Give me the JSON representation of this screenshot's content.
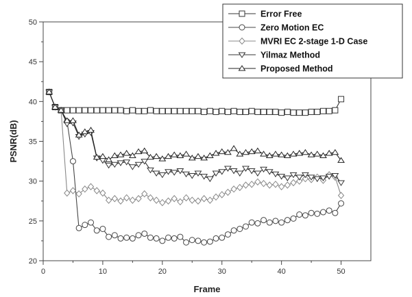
{
  "chart_data": {
    "type": "line",
    "xlabel": "Frame",
    "ylabel": "PSNR(dB)",
    "xlim": [
      0,
      55
    ],
    "ylim": [
      20,
      50
    ],
    "xticks": [
      0,
      10,
      20,
      30,
      40,
      50
    ],
    "yticks": [
      20,
      25,
      30,
      35,
      40,
      45,
      50
    ],
    "grid": false,
    "legend_position": "top-right",
    "series": [
      {
        "name": "Error Free",
        "marker": "square",
        "color": "#333333",
        "x": [
          1,
          2,
          3,
          4,
          5,
          6,
          7,
          8,
          9,
          10,
          11,
          12,
          13,
          14,
          15,
          16,
          17,
          18,
          19,
          20,
          21,
          22,
          23,
          24,
          25,
          26,
          27,
          28,
          29,
          30,
          31,
          32,
          33,
          34,
          35,
          36,
          37,
          38,
          39,
          40,
          41,
          42,
          43,
          44,
          45,
          46,
          47,
          48,
          49,
          50
        ],
        "values": [
          41.2,
          39.3,
          38.9,
          38.9,
          38.9,
          38.9,
          38.9,
          38.9,
          38.9,
          38.9,
          38.9,
          38.9,
          38.9,
          38.8,
          38.9,
          38.8,
          38.8,
          38.9,
          38.8,
          38.8,
          38.8,
          38.8,
          38.8,
          38.8,
          38.8,
          38.8,
          38.7,
          38.8,
          38.7,
          38.8,
          38.7,
          38.8,
          38.7,
          38.7,
          38.8,
          38.7,
          38.7,
          38.7,
          38.7,
          38.6,
          38.7,
          38.6,
          38.6,
          38.6,
          38.7,
          38.7,
          38.8,
          38.8,
          38.9,
          40.3
        ]
      },
      {
        "name": "Zero Motion EC",
        "marker": "circle",
        "color": "#444444",
        "x": [
          1,
          2,
          3,
          4,
          5,
          6,
          7,
          8,
          9,
          10,
          11,
          12,
          13,
          14,
          15,
          16,
          17,
          18,
          19,
          20,
          21,
          22,
          23,
          24,
          25,
          26,
          27,
          28,
          29,
          30,
          31,
          32,
          33,
          34,
          35,
          36,
          37,
          38,
          39,
          40,
          41,
          42,
          43,
          44,
          45,
          46,
          47,
          48,
          49,
          50
        ],
        "values": [
          41.2,
          39.3,
          38.9,
          37.5,
          32.5,
          24.1,
          24.5,
          24.8,
          23.8,
          24.0,
          23.0,
          23.2,
          22.8,
          22.9,
          22.8,
          23.2,
          23.4,
          22.9,
          22.8,
          22.5,
          22.9,
          22.8,
          23.0,
          22.3,
          22.6,
          22.5,
          22.3,
          22.4,
          22.8,
          22.9,
          23.3,
          23.8,
          24.0,
          24.3,
          24.8,
          24.7,
          25.1,
          24.8,
          25.0,
          24.8,
          25.1,
          25.3,
          25.8,
          25.7,
          26.0,
          25.9,
          26.1,
          26.3,
          26.0,
          27.2
        ]
      },
      {
        "name": "MVRI EC 2-stage 1-D Case",
        "marker": "diamond",
        "color": "#888888",
        "x": [
          1,
          2,
          3,
          4,
          5,
          6,
          7,
          8,
          9,
          10,
          11,
          12,
          13,
          14,
          15,
          16,
          17,
          18,
          19,
          20,
          21,
          22,
          23,
          24,
          25,
          26,
          27,
          28,
          29,
          30,
          31,
          32,
          33,
          34,
          35,
          36,
          37,
          38,
          39,
          40,
          41,
          42,
          43,
          44,
          45,
          46,
          47,
          48,
          49,
          50
        ],
        "values": [
          41.2,
          39.3,
          38.9,
          28.5,
          28.8,
          28.4,
          29.0,
          29.3,
          28.8,
          28.5,
          27.6,
          27.8,
          27.5,
          27.9,
          27.6,
          27.8,
          28.4,
          27.9,
          27.6,
          27.3,
          27.5,
          27.8,
          27.4,
          27.9,
          27.6,
          27.5,
          27.8,
          27.6,
          28.0,
          28.3,
          28.6,
          29.0,
          29.2,
          29.5,
          29.6,
          29.9,
          29.7,
          29.5,
          29.6,
          29.3,
          29.5,
          29.8,
          30.0,
          30.3,
          30.2,
          30.5,
          30.1,
          30.8,
          30.5,
          28.2
        ]
      },
      {
        "name": "Yilmaz Method",
        "marker": "triangle-down",
        "color": "#333333",
        "x": [
          1,
          2,
          3,
          4,
          5,
          6,
          7,
          8,
          9,
          10,
          11,
          12,
          13,
          14,
          15,
          16,
          17,
          18,
          19,
          20,
          21,
          22,
          23,
          24,
          25,
          26,
          27,
          28,
          29,
          30,
          31,
          32,
          33,
          34,
          35,
          36,
          37,
          38,
          39,
          40,
          41,
          42,
          43,
          44,
          45,
          46,
          47,
          48,
          49,
          50
        ],
        "values": [
          41.2,
          39.3,
          38.9,
          37.2,
          37.3,
          35.6,
          35.9,
          36.1,
          32.9,
          32.6,
          32.0,
          32.1,
          32.3,
          32.4,
          31.8,
          32.1,
          32.5,
          31.4,
          31.0,
          30.8,
          31.2,
          31.1,
          31.3,
          30.9,
          30.7,
          31.0,
          30.6,
          30.3,
          31.0,
          31.2,
          31.6,
          31.3,
          31.0,
          31.6,
          31.3,
          31.0,
          31.5,
          31.2,
          30.9,
          30.6,
          30.4,
          30.8,
          30.5,
          30.8,
          30.5,
          30.3,
          30.4,
          30.6,
          30.7,
          29.8
        ]
      },
      {
        "name": "Proposed Method",
        "marker": "triangle-up",
        "color": "#222222",
        "x": [
          1,
          2,
          3,
          4,
          5,
          6,
          7,
          8,
          9,
          10,
          11,
          12,
          13,
          14,
          15,
          16,
          17,
          18,
          19,
          20,
          21,
          22,
          23,
          24,
          25,
          26,
          27,
          28,
          29,
          30,
          31,
          32,
          33,
          34,
          35,
          36,
          37,
          38,
          39,
          40,
          41,
          42,
          43,
          44,
          45,
          46,
          47,
          48,
          49,
          50
        ],
        "values": [
          41.2,
          39.3,
          38.9,
          37.6,
          37.6,
          35.8,
          36.2,
          36.4,
          33.0,
          33.1,
          32.7,
          33.2,
          33.3,
          33.5,
          33.2,
          33.7,
          33.8,
          33.0,
          33.1,
          32.8,
          33.1,
          33.3,
          33.2,
          33.4,
          32.9,
          33.1,
          32.9,
          33.2,
          33.5,
          33.7,
          33.6,
          34.1,
          33.4,
          33.6,
          33.7,
          33.8,
          33.4,
          33.2,
          33.4,
          33.3,
          33.2,
          33.4,
          33.5,
          33.6,
          33.3,
          33.4,
          33.2,
          33.5,
          33.6,
          32.6
        ]
      }
    ]
  }
}
